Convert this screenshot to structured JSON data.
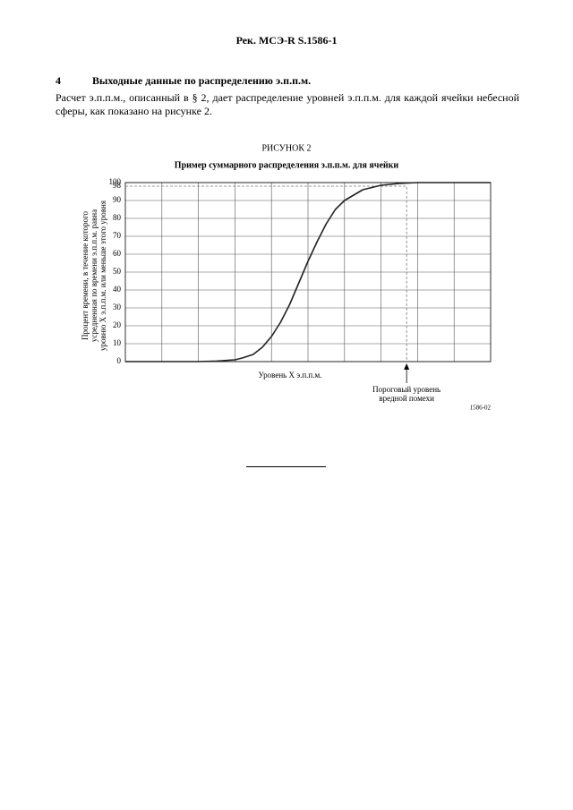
{
  "header": {
    "title": "Рек. МСЭ-R S.1586-1"
  },
  "section": {
    "number": "4",
    "title": "Выходные данные по распределению э.п.п.м.",
    "text": "Расчет э.п.п.м., описанный в § 2, дает распределение уровней э.п.п.м. для каждой ячейки небесной сферы, как показано на рисунке 2."
  },
  "chart_data": {
    "type": "line",
    "label": "РИСУНОК 2",
    "title": "Пример суммарного распределения э.п.п.м. для ячейки",
    "x_label": "Уровень X э.п.п.м.",
    "y_label": [
      "Процент времени, в течение которого",
      "усредненная по времени э.п.п.м. равна",
      "уровню X э.п.п.м. или меньше этого уровня"
    ],
    "x": [
      0,
      1,
      2,
      2.5,
      3,
      3.2,
      3.5,
      3.75,
      4,
      4.25,
      4.5,
      4.75,
      5,
      5.25,
      5.5,
      5.75,
      6,
      6.5,
      7,
      7.5,
      8,
      10
    ],
    "series": [
      {
        "color": "#222222",
        "values": [
          0,
          0,
          0,
          0.3,
          1,
          2,
          4,
          8,
          14,
          22,
          32,
          44,
          56,
          67,
          77,
          85,
          90,
          96,
          98.5,
          99.5,
          100,
          100
        ]
      }
    ],
    "xlim": [
      0,
      10
    ],
    "ylim": [
      0,
      100
    ],
    "yticks": [
      0,
      10,
      20,
      30,
      40,
      50,
      60,
      70,
      80,
      90,
      98,
      100
    ],
    "grid": true,
    "threshold": {
      "x": 7.7,
      "y": 98,
      "label": [
        "Пороговый уровень",
        "вредной помехи"
      ]
    },
    "figure_id": "1586-02"
  }
}
